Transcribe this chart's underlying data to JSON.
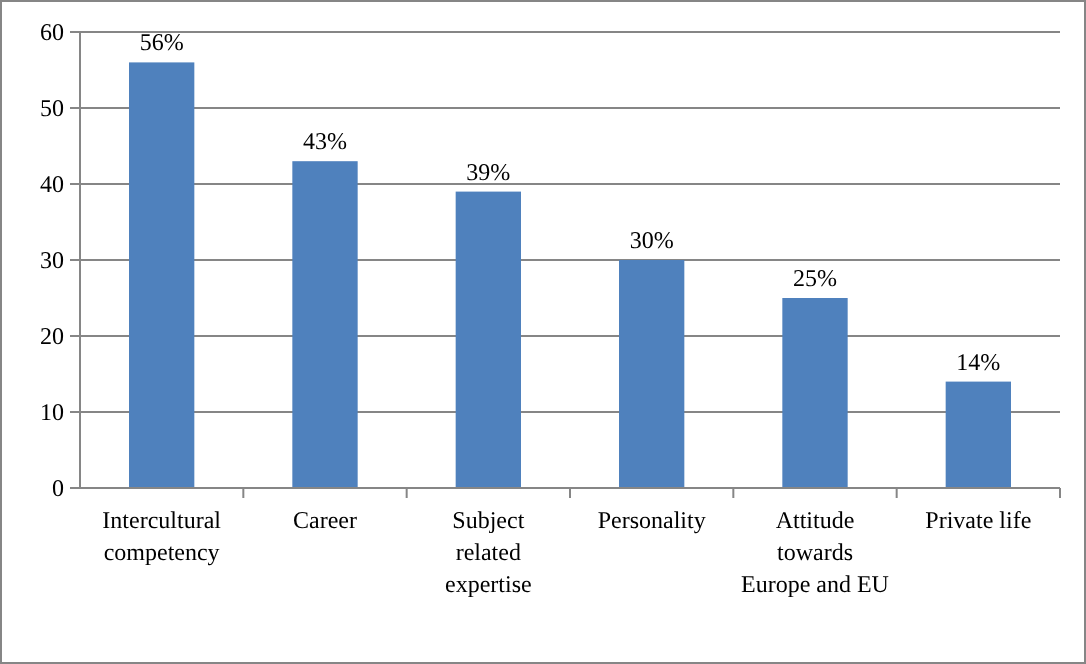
{
  "chart_data": {
    "type": "bar",
    "categories": [
      "Intercultural competency",
      "Career",
      "Subject related expertise",
      "Personality",
      "Attitude towards Europe and EU",
      "Private life"
    ],
    "values": [
      56,
      43,
      39,
      30,
      25,
      14
    ],
    "value_labels": [
      "56%",
      "43%",
      "39%",
      "30%",
      "25%",
      "14%"
    ],
    "color": "#4f81bd",
    "ylim": [
      0,
      60
    ],
    "yticks": [
      0,
      10,
      20,
      30,
      40,
      50,
      60
    ],
    "grid": "y"
  }
}
